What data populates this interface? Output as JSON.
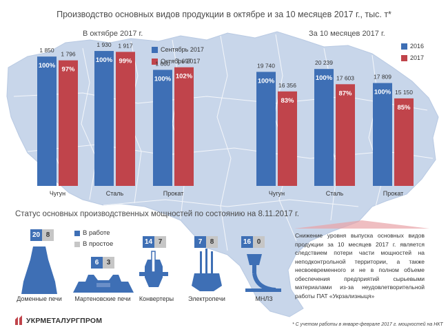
{
  "title": "Производство основных видов продукции в октябре и за 10 месяцев 2017 г., тыс. т*",
  "colors": {
    "blue": "#3e6fb5",
    "red": "#c0444b",
    "grey": "#c6c6c6",
    "map": "#c8d6ea"
  },
  "chart_data": [
    {
      "type": "bar",
      "title": "В октябре 2017 г.",
      "categories": [
        "Чугун",
        "Сталь",
        "Прокат"
      ],
      "series": [
        {
          "name": "Сентябрь 2017",
          "values": [
            1850,
            1930,
            1660
          ],
          "value_labels": [
            "1 850",
            "1 930",
            "1 660"
          ],
          "pct_labels": [
            "100%",
            "100%",
            "100%"
          ]
        },
        {
          "name": "Октябрь 2017",
          "values": [
            1796,
            1917,
            1697
          ],
          "value_labels": [
            "1 796",
            "1 917",
            "1 697"
          ],
          "pct_labels": [
            "97%",
            "99%",
            "102%"
          ]
        }
      ],
      "legend_position": "top-right",
      "grid": false
    },
    {
      "type": "bar",
      "title": "За 10 месяцев 2017 г.",
      "categories": [
        "Чугун",
        "Сталь",
        "Прокат"
      ],
      "series": [
        {
          "name": "2016",
          "values": [
            19740,
            20239,
            17809
          ],
          "value_labels": [
            "19 740",
            "20 239",
            "17 809"
          ],
          "pct_labels": [
            "100%",
            "100%",
            "100%"
          ]
        },
        {
          "name": "2017",
          "values": [
            16356,
            17603,
            15150
          ],
          "value_labels": [
            "16 356",
            "17 603",
            "15 150"
          ],
          "pct_labels": [
            "83%",
            "87%",
            "85%"
          ]
        }
      ],
      "legend_position": "top-right",
      "grid": false
    }
  ],
  "status": {
    "title": "Статус основных производственных мощностей по состоянию на 8.11.2017 г.",
    "legend": {
      "working": "В работе",
      "idle": "В простое"
    },
    "equipment": [
      {
        "name": "Доменные печи",
        "working": "20",
        "idle": "8",
        "icon": "blast-furnace-icon"
      },
      {
        "name": "Мартеновские печи",
        "working": "6",
        "idle": "3",
        "icon": "open-hearth-furnace-icon"
      },
      {
        "name": "Конвертеры",
        "working": "14",
        "idle": "7",
        "icon": "converter-icon"
      },
      {
        "name": "Электропечи",
        "working": "7",
        "idle": "8",
        "icon": "electric-furnace-icon"
      },
      {
        "name": "МНЛЗ",
        "working": "16",
        "idle": "0",
        "icon": "continuous-caster-icon"
      }
    ]
  },
  "note": "Снижение уровня выпуска основных видов продукции за 10 месяцев 2017 г. является следствием потери части мощностей на неподконтрольной территории, а также несвоевременного и не в полном объеме обеспечения предприятий сырьевыми материалами из-за неудовлетворительной работы ПАТ «Укрзализныця»",
  "footnote": "* С учетом работы в январе-феврале  2017  г. мощностей на НКТ",
  "logo": {
    "text": "УКРМЕТАЛУРГПРОМ",
    "icon": "ukrmetalurgprom-logo-icon"
  }
}
